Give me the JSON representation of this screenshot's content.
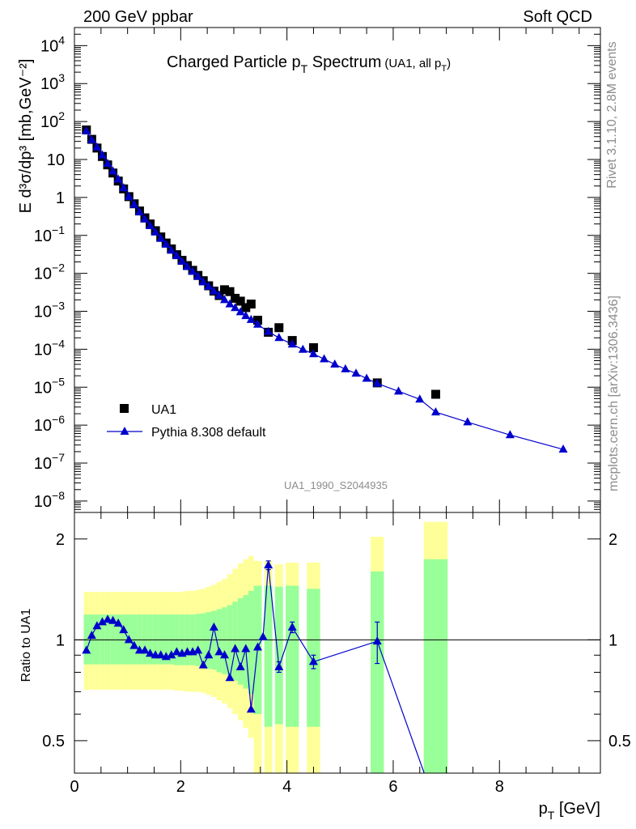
{
  "header": {
    "left": "200 GeV ppbar",
    "right": "Soft QCD"
  },
  "side_labels": {
    "rivet": "Rivet 3.1.10,  2.8M events",
    "mcplots": "mcplots.cern.ch [arXiv:1306.3436]"
  },
  "chart_data": [
    {
      "type": "scatter",
      "panel": "main",
      "title_main": "Charged Particle p",
      "title_sub": "T",
      "title_main2": " Spectrum",
      "title_note": "(UA1, all p",
      "title_note_sub": "T",
      "title_note_end": ")",
      "ylabel": "E d³σ/dp³ [mb,GeV⁻²]",
      "yscale": "log",
      "ylim": [
        5e-09,
        30000
      ],
      "xlim": [
        0,
        9.9
      ],
      "ytick_labels": [
        {
          "base": "10",
          "exp": "4",
          "v": 10000.0
        },
        {
          "base": "10",
          "exp": "3",
          "v": 1000.0
        },
        {
          "base": "10",
          "exp": "2",
          "v": 100.0
        },
        {
          "base": "10",
          "exp": "",
          "v": 10.0
        },
        {
          "base": "1",
          "exp": "",
          "v": 1
        },
        {
          "base": "10",
          "exp": "−1",
          "v": 0.1
        },
        {
          "base": "10",
          "exp": "−2",
          "v": 0.01
        },
        {
          "base": "10",
          "exp": "−3",
          "v": 0.001
        },
        {
          "base": "10",
          "exp": "−4",
          "v": 0.0001
        },
        {
          "base": "10",
          "exp": "−5",
          "v": 1e-05
        },
        {
          "base": "10",
          "exp": "−6",
          "v": 1e-06
        },
        {
          "base": "10",
          "exp": "−7",
          "v": 1e-07
        },
        {
          "base": "10",
          "exp": "−8",
          "v": 1e-08
        }
      ],
      "watermark": "UA1_1990_S2044935",
      "legend_placement": "lower-left",
      "series": [
        {
          "name": "UA1",
          "marker": "square",
          "color": "#000000",
          "x": [
            0.225,
            0.325,
            0.425,
            0.525,
            0.625,
            0.725,
            0.825,
            0.925,
            1.025,
            1.125,
            1.225,
            1.325,
            1.425,
            1.525,
            1.625,
            1.725,
            1.825,
            1.925,
            2.025,
            2.125,
            2.225,
            2.325,
            2.425,
            2.525,
            2.625,
            2.725,
            2.825,
            2.925,
            3.025,
            3.125,
            3.225,
            3.325,
            3.45,
            3.65,
            3.85,
            4.1,
            4.5,
            5.7,
            6.8
          ],
          "values": [
            60,
            34,
            20,
            12,
            7.2,
            4.4,
            2.7,
            1.68,
            1.05,
            0.68,
            0.44,
            0.29,
            0.2,
            0.133,
            0.091,
            0.063,
            0.044,
            0.031,
            0.022,
            0.016,
            0.012,
            0.0088,
            0.0064,
            0.0047,
            0.0034,
            0.0026,
            0.0037,
            0.0033,
            0.0022,
            0.00185,
            0.00125,
            0.00155,
            0.00058,
            0.00028,
            0.00037,
            0.00017,
            0.00011,
            1.3e-05,
            6.5e-06
          ]
        },
        {
          "name": "Pythia 8.308 default",
          "marker": "triangle",
          "color": "#0000cc",
          "x": [
            0.225,
            0.325,
            0.425,
            0.525,
            0.625,
            0.725,
            0.825,
            0.925,
            1.025,
            1.125,
            1.225,
            1.325,
            1.425,
            1.525,
            1.625,
            1.725,
            1.825,
            1.925,
            2.025,
            2.125,
            2.225,
            2.325,
            2.425,
            2.525,
            2.625,
            2.725,
            2.825,
            2.925,
            3.025,
            3.125,
            3.225,
            3.325,
            3.45,
            3.65,
            3.85,
            4.1,
            4.3,
            4.5,
            4.7,
            4.9,
            5.1,
            5.3,
            5.5,
            5.7,
            6.1,
            6.5,
            6.8,
            7.4,
            8.2,
            9.2
          ],
          "values": [
            56,
            33,
            21,
            13,
            7.8,
            4.9,
            3.0,
            1.78,
            1.05,
            0.65,
            0.41,
            0.265,
            0.178,
            0.121,
            0.082,
            0.058,
            0.04,
            0.029,
            0.0205,
            0.0149,
            0.0111,
            0.0082,
            0.0059,
            0.0045,
            0.0034,
            0.0026,
            0.002,
            0.00155,
            0.00123,
            0.00096,
            0.00076,
            0.0006,
            0.00045,
            0.00029,
            0.0002,
            0.000135,
            9.8e-05,
            7.5e-05,
            5.5e-05,
            4e-05,
            3e-05,
            2.3e-05,
            1.7e-05,
            1.25e-05,
            7.8e-06,
            4.8e-06,
            2.2e-06,
            1.2e-06,
            5.5e-07,
            2.3e-07
          ]
        }
      ]
    },
    {
      "type": "line",
      "panel": "ratio",
      "ylabel": "Ratio to UA1",
      "xlabel": "p",
      "xlabel_sub": "T",
      "xlabel_unit": " [GeV]",
      "yscale": "log",
      "ylim": [
        0.4,
        2.4
      ],
      "xlim": [
        0,
        9.9
      ],
      "xticks": [
        0,
        2,
        4,
        6,
        8
      ],
      "xtick_labels": [
        "0",
        "2",
        "4",
        "6",
        "8"
      ],
      "ytick_labels": [
        "2",
        "1",
        "0.5"
      ],
      "yticks": [
        2,
        1,
        0.5
      ],
      "reference_line": 1,
      "band_colors": {
        "inner": "#99ff99",
        "outer": "#ffff99"
      },
      "bands": [
        {
          "x0": 0.175,
          "x1": 0.275,
          "lo2": 0.71,
          "lo1": 0.845,
          "hi1": 1.19,
          "hi2": 1.39
        },
        {
          "x0": 0.275,
          "x1": 0.375,
          "lo2": 0.71,
          "lo1": 0.845,
          "hi1": 1.19,
          "hi2": 1.39
        },
        {
          "x0": 0.375,
          "x1": 0.475,
          "lo2": 0.71,
          "lo1": 0.845,
          "hi1": 1.19,
          "hi2": 1.39
        },
        {
          "x0": 0.475,
          "x1": 0.575,
          "lo2": 0.71,
          "lo1": 0.845,
          "hi1": 1.19,
          "hi2": 1.39
        },
        {
          "x0": 0.575,
          "x1": 0.675,
          "lo2": 0.71,
          "lo1": 0.845,
          "hi1": 1.19,
          "hi2": 1.39
        },
        {
          "x0": 0.675,
          "x1": 0.775,
          "lo2": 0.71,
          "lo1": 0.845,
          "hi1": 1.19,
          "hi2": 1.39
        },
        {
          "x0": 0.775,
          "x1": 0.875,
          "lo2": 0.71,
          "lo1": 0.845,
          "hi1": 1.19,
          "hi2": 1.39
        },
        {
          "x0": 0.875,
          "x1": 0.975,
          "lo2": 0.71,
          "lo1": 0.845,
          "hi1": 1.19,
          "hi2": 1.39
        },
        {
          "x0": 0.975,
          "x1": 1.075,
          "lo2": 0.71,
          "lo1": 0.845,
          "hi1": 1.19,
          "hi2": 1.39
        },
        {
          "x0": 1.075,
          "x1": 1.175,
          "lo2": 0.71,
          "lo1": 0.845,
          "hi1": 1.19,
          "hi2": 1.39
        },
        {
          "x0": 1.175,
          "x1": 1.275,
          "lo2": 0.71,
          "lo1": 0.845,
          "hi1": 1.19,
          "hi2": 1.39
        },
        {
          "x0": 1.275,
          "x1": 1.375,
          "lo2": 0.71,
          "lo1": 0.845,
          "hi1": 1.19,
          "hi2": 1.39
        },
        {
          "x0": 1.375,
          "x1": 1.475,
          "lo2": 0.71,
          "lo1": 0.845,
          "hi1": 1.19,
          "hi2": 1.39
        },
        {
          "x0": 1.475,
          "x1": 1.575,
          "lo2": 0.71,
          "lo1": 0.845,
          "hi1": 1.19,
          "hi2": 1.39
        },
        {
          "x0": 1.575,
          "x1": 1.675,
          "lo2": 0.71,
          "lo1": 0.845,
          "hi1": 1.19,
          "hi2": 1.39
        },
        {
          "x0": 1.675,
          "x1": 1.775,
          "lo2": 0.71,
          "lo1": 0.845,
          "hi1": 1.19,
          "hi2": 1.39
        },
        {
          "x0": 1.775,
          "x1": 1.875,
          "lo2": 0.71,
          "lo1": 0.845,
          "hi1": 1.19,
          "hi2": 1.39
        },
        {
          "x0": 1.875,
          "x1": 1.975,
          "lo2": 0.705,
          "lo1": 0.84,
          "hi1": 1.19,
          "hi2": 1.39
        },
        {
          "x0": 1.975,
          "x1": 2.075,
          "lo2": 0.705,
          "lo1": 0.84,
          "hi1": 1.19,
          "hi2": 1.39
        },
        {
          "x0": 2.075,
          "x1": 2.175,
          "lo2": 0.7,
          "lo1": 0.84,
          "hi1": 1.19,
          "hi2": 1.4
        },
        {
          "x0": 2.175,
          "x1": 2.275,
          "lo2": 0.7,
          "lo1": 0.84,
          "hi1": 1.19,
          "hi2": 1.4
        },
        {
          "x0": 2.275,
          "x1": 2.375,
          "lo2": 0.7,
          "lo1": 0.835,
          "hi1": 1.195,
          "hi2": 1.41
        },
        {
          "x0": 2.375,
          "x1": 2.475,
          "lo2": 0.695,
          "lo1": 0.83,
          "hi1": 1.2,
          "hi2": 1.42
        },
        {
          "x0": 2.475,
          "x1": 2.575,
          "lo2": 0.685,
          "lo1": 0.82,
          "hi1": 1.21,
          "hi2": 1.44
        },
        {
          "x0": 2.575,
          "x1": 2.675,
          "lo2": 0.675,
          "lo1": 0.815,
          "hi1": 1.22,
          "hi2": 1.46
        },
        {
          "x0": 2.675,
          "x1": 2.775,
          "lo2": 0.66,
          "lo1": 0.8,
          "hi1": 1.235,
          "hi2": 1.49
        },
        {
          "x0": 2.775,
          "x1": 2.875,
          "lo2": 0.645,
          "lo1": 0.79,
          "hi1": 1.25,
          "hi2": 1.52
        },
        {
          "x0": 2.875,
          "x1": 2.975,
          "lo2": 0.625,
          "lo1": 0.775,
          "hi1": 1.27,
          "hi2": 1.57
        },
        {
          "x0": 2.975,
          "x1": 3.075,
          "lo2": 0.6,
          "lo1": 0.755,
          "hi1": 1.3,
          "hi2": 1.63
        },
        {
          "x0": 3.075,
          "x1": 3.175,
          "lo2": 0.575,
          "lo1": 0.735,
          "hi1": 1.33,
          "hi2": 1.69
        },
        {
          "x0": 3.175,
          "x1": 3.275,
          "lo2": 0.545,
          "lo1": 0.715,
          "hi1": 1.36,
          "hi2": 1.74
        },
        {
          "x0": 3.275,
          "x1": 3.375,
          "lo2": 0.51,
          "lo1": 0.69,
          "hi1": 1.4,
          "hi2": 1.78
        },
        {
          "x0": 3.375,
          "x1": 3.525,
          "lo2": 0.35,
          "lo1": 0.6,
          "hi1": 1.45,
          "hi2": 1.72
        },
        {
          "x0": 3.575,
          "x1": 3.725,
          "lo2": 0.35,
          "lo1": 0.55,
          "hi1": 1.45,
          "hi2": 1.72
        },
        {
          "x0": 3.775,
          "x1": 3.925,
          "lo2": 0.37,
          "lo1": 0.56,
          "hi1": 1.44,
          "hi2": 1.68
        },
        {
          "x0": 3.975,
          "x1": 4.225,
          "lo2": 0.35,
          "lo1": 0.55,
          "hi1": 1.45,
          "hi2": 1.7
        },
        {
          "x0": 4.375,
          "x1": 4.625,
          "lo2": 0.35,
          "lo1": 0.55,
          "hi1": 1.42,
          "hi2": 1.7
        },
        {
          "x0": 5.575,
          "x1": 5.825,
          "lo2": 0.35,
          "lo1": 0.39,
          "hi1": 1.6,
          "hi2": 2.03
        },
        {
          "x0": 6.575,
          "x1": 7.025,
          "lo2": 0.35,
          "lo1": 0.35,
          "hi1": 1.74,
          "hi2": 2.25
        }
      ],
      "series": [
        {
          "name": "Pythia 8.308 default",
          "marker": "triangle",
          "color": "#0000cc",
          "x": [
            0.225,
            0.325,
            0.425,
            0.525,
            0.625,
            0.725,
            0.825,
            0.925,
            1.025,
            1.125,
            1.225,
            1.325,
            1.425,
            1.525,
            1.625,
            1.725,
            1.825,
            1.925,
            2.025,
            2.125,
            2.225,
            2.325,
            2.425,
            2.525,
            2.625,
            2.725,
            2.825,
            2.925,
            3.025,
            3.125,
            3.225,
            3.325,
            3.45,
            3.55,
            3.65,
            3.85,
            4.1,
            4.5,
            5.7,
            6.8
          ],
          "values": [
            0.93,
            1.03,
            1.1,
            1.13,
            1.15,
            1.14,
            1.12,
            1.07,
            1.0,
            0.96,
            0.93,
            0.93,
            0.91,
            0.9,
            0.9,
            0.89,
            0.9,
            0.92,
            0.91,
            0.92,
            0.92,
            0.93,
            0.84,
            0.9,
            1.09,
            0.92,
            0.9,
            0.77,
            0.94,
            0.83,
            0.94,
            0.62,
            0.95,
            1.02,
            1.67,
            0.83,
            1.09,
            0.86,
            0.99,
            0.32
          ],
          "err": [
            0,
            0,
            0,
            0,
            0,
            0,
            0,
            0,
            0,
            0,
            0,
            0,
            0,
            0,
            0,
            0,
            0,
            0,
            0,
            0,
            0,
            0,
            0,
            0,
            0,
            0,
            0,
            0,
            0,
            0,
            0,
            0,
            0,
            0,
            0.05,
            0.03,
            0.04,
            0.04,
            0.14,
            0
          ]
        }
      ]
    }
  ]
}
